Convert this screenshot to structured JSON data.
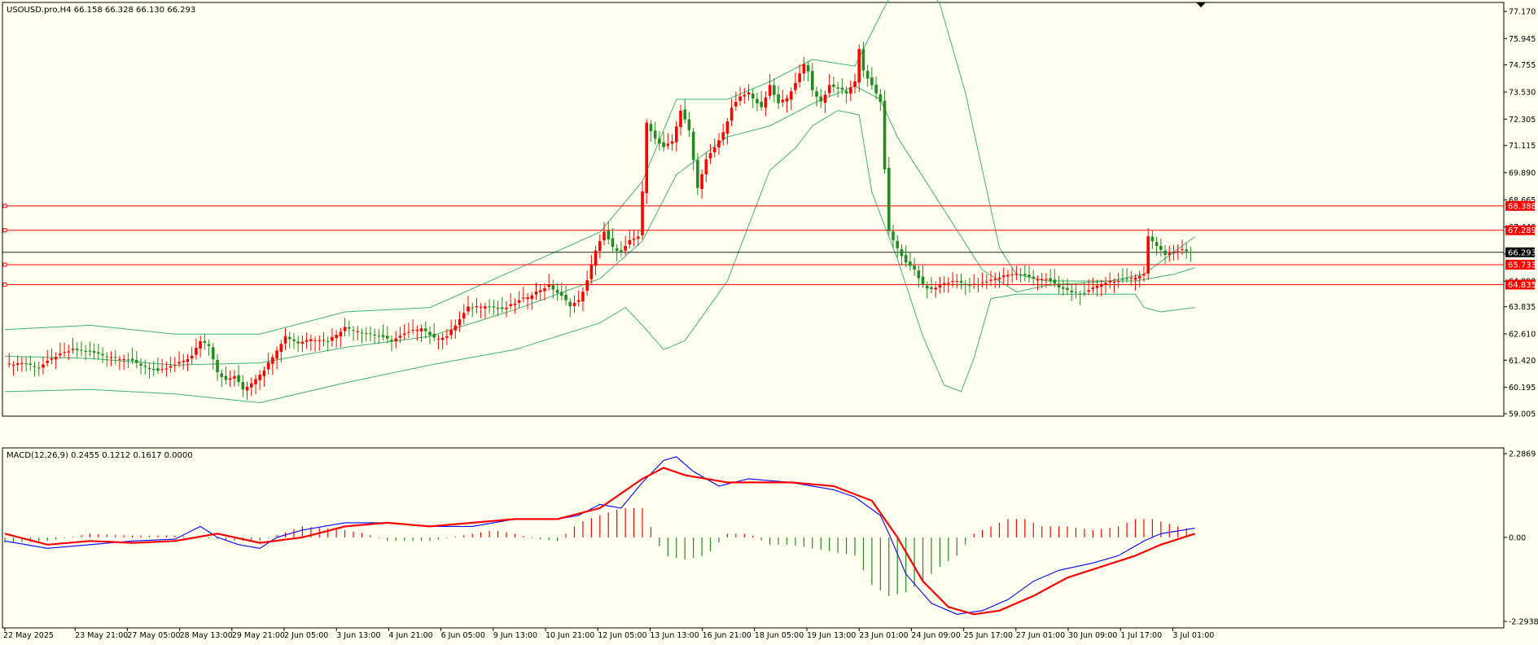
{
  "main_header": {
    "symbol": "USOUSD.pro,H4",
    "ohlc": "66.158 66.328 66.130 66.293"
  },
  "macd_header": {
    "label": "MACD(12,26,9) 0.2455 0.1212 0.1617 0.0000"
  },
  "colors": {
    "background": "#fffff0",
    "bull_candle": "#ff0000",
    "bear_candle": "#228b22",
    "bollinger": "#3cb371",
    "hline": "#ff0000",
    "macd_main": "#0000ff",
    "macd_signal": "#ff0000",
    "hist_pos": "#ff0000",
    "hist_neg": "#228b22"
  },
  "chart_data": [
    {
      "type": "candlestick",
      "price_axis_ticks": [
        "77.170",
        "75.945",
        "74.755",
        "73.530",
        "72.305",
        "71.115",
        "69.890",
        "68.665",
        "67.440",
        "66.215",
        "64.990",
        "63.835",
        "62.610",
        "61.420",
        "60.195",
        "59.005"
      ],
      "ylim": [
        59.005,
        77.17
      ],
      "current_price": "66.293",
      "levels": [
        "68.388",
        "67.289",
        "65.733",
        "64.835"
      ],
      "x_ticks": [
        "22 May 2025",
        "23 May 21:00",
        "27 May 05:00",
        "28 May 13:00",
        "29 May 21:00",
        "2 Jun 05:00",
        "3 Jun 13:00",
        "4 Jun 21:00",
        "6 Jun 05:00",
        "9 Jun 13:00",
        "10 Jun 21:00",
        "12 Jun 05:00",
        "13 Jun 13:00",
        "16 Jun 21:00",
        "18 Jun 05:00",
        "19 Jun 13:00",
        "23 Jun 01:00",
        "24 Jun 09:00",
        "25 Jun 17:00",
        "27 Jun 01:00",
        "30 Jun 09:00",
        "1 Jul 17:00",
        "3 Jul 01:00"
      ],
      "close_path": [
        [
          0,
          61.2
        ],
        [
          4,
          61.3
        ],
        [
          8,
          61.1
        ],
        [
          12,
          61.6
        ],
        [
          16,
          61.9
        ],
        [
          20,
          61.8
        ],
        [
          24,
          61.6
        ],
        [
          28,
          61.5
        ],
        [
          32,
          61.2
        ],
        [
          36,
          60.9
        ],
        [
          40,
          61.2
        ],
        [
          44,
          61.6
        ],
        [
          46,
          62.3
        ],
        [
          48,
          62.1
        ],
        [
          50,
          60.9
        ],
        [
          52,
          60.5
        ],
        [
          54,
          60.7
        ],
        [
          56,
          60.1
        ],
        [
          58,
          60.4
        ],
        [
          61,
          61.0
        ],
        [
          64,
          61.9
        ],
        [
          66,
          62.5
        ],
        [
          69,
          62.2
        ],
        [
          72,
          62.4
        ],
        [
          76,
          62.3
        ],
        [
          80,
          62.9
        ],
        [
          84,
          62.7
        ],
        [
          88,
          62.5
        ],
        [
          91,
          62.3
        ],
        [
          94,
          62.6
        ],
        [
          98,
          62.9
        ],
        [
          101,
          62.4
        ],
        [
          104,
          62.5
        ],
        [
          106,
          63.0
        ],
        [
          109,
          63.8
        ],
        [
          113,
          63.9
        ],
        [
          117,
          63.7
        ],
        [
          120,
          64.0
        ],
        [
          124,
          64.4
        ],
        [
          128,
          64.8
        ],
        [
          131,
          64.3
        ],
        [
          133,
          63.9
        ],
        [
          135,
          64.1
        ],
        [
          137,
          65.0
        ],
        [
          139,
          66.4
        ],
        [
          141,
          67.2
        ],
        [
          143,
          66.5
        ],
        [
          145,
          66.3
        ],
        [
          147,
          66.8
        ],
        [
          149,
          67.0
        ],
        [
          150,
          69.0
        ],
        [
          151,
          72.2
        ],
        [
          153,
          71.4
        ],
        [
          155,
          71.0
        ],
        [
          157,
          71.3
        ],
        [
          159,
          72.7
        ],
        [
          161,
          71.8
        ],
        [
          163,
          69.2
        ],
        [
          165,
          70.5
        ],
        [
          167,
          71.0
        ],
        [
          169,
          71.7
        ],
        [
          171,
          72.8
        ],
        [
          173,
          73.3
        ],
        [
          175,
          73.5
        ],
        [
          178,
          72.8
        ],
        [
          180,
          73.8
        ],
        [
          182,
          73.0
        ],
        [
          184,
          73.3
        ],
        [
          186,
          73.9
        ],
        [
          188,
          74.8
        ],
        [
          189,
          74.5
        ],
        [
          190,
          73.6
        ],
        [
          192,
          73.1
        ],
        [
          194,
          73.8
        ],
        [
          196,
          73.7
        ],
        [
          198,
          73.5
        ],
        [
          200,
          74.0
        ],
        [
          201,
          75.5
        ],
        [
          202,
          74.5
        ],
        [
          204,
          73.8
        ],
        [
          206,
          73.1
        ],
        [
          207,
          70.0
        ],
        [
          208,
          67.2
        ],
        [
          210,
          66.5
        ],
        [
          212,
          65.8
        ],
        [
          214,
          65.5
        ],
        [
          216,
          64.8
        ],
        [
          218,
          64.6
        ],
        [
          221,
          64.9
        ],
        [
          224,
          65.0
        ],
        [
          227,
          64.8
        ],
        [
          230,
          64.9
        ],
        [
          233,
          65.1
        ],
        [
          236,
          65.3
        ],
        [
          239,
          65.3
        ],
        [
          242,
          65.1
        ],
        [
          245,
          65.1
        ],
        [
          248,
          64.7
        ],
        [
          251,
          64.5
        ],
        [
          254,
          64.4
        ],
        [
          257,
          64.8
        ],
        [
          260,
          65.0
        ],
        [
          263,
          65.0
        ],
        [
          266,
          65.2
        ],
        [
          268,
          65.3
        ],
        [
          269,
          67.0
        ],
        [
          271,
          66.6
        ],
        [
          273,
          66.2
        ],
        [
          275,
          66.3
        ],
        [
          277,
          66.4
        ],
        [
          279,
          66.3
        ]
      ],
      "bb_upper": [
        [
          0,
          62.8
        ],
        [
          20,
          63.0
        ],
        [
          40,
          62.6
        ],
        [
          60,
          62.6
        ],
        [
          80,
          63.6
        ],
        [
          100,
          63.8
        ],
        [
          120,
          65.5
        ],
        [
          140,
          67.2
        ],
        [
          150,
          69.5
        ],
        [
          158,
          73.2
        ],
        [
          170,
          73.2
        ],
        [
          180,
          74.0
        ],
        [
          190,
          75.0
        ],
        [
          200,
          74.7
        ],
        [
          206,
          77.0
        ],
        [
          210,
          78.5
        ],
        [
          215,
          78.8
        ],
        [
          220,
          77.5
        ],
        [
          226,
          73.5
        ],
        [
          230,
          70.0
        ],
        [
          234,
          66.5
        ],
        [
          238,
          65.3
        ],
        [
          245,
          65.0
        ],
        [
          260,
          65.0
        ],
        [
          268,
          65.3
        ],
        [
          275,
          66.3
        ],
        [
          280,
          67.0
        ]
      ],
      "bb_mid": [
        [
          0,
          61.6
        ],
        [
          20,
          61.5
        ],
        [
          40,
          61.2
        ],
        [
          60,
          61.3
        ],
        [
          80,
          62.0
        ],
        [
          100,
          62.5
        ],
        [
          120,
          63.7
        ],
        [
          140,
          65.1
        ],
        [
          150,
          66.8
        ],
        [
          158,
          69.8
        ],
        [
          170,
          71.5
        ],
        [
          180,
          72.0
        ],
        [
          190,
          73.0
        ],
        [
          200,
          73.8
        ],
        [
          206,
          73.2
        ],
        [
          210,
          71.5
        ],
        [
          220,
          68.5
        ],
        [
          230,
          65.5
        ],
        [
          238,
          64.5
        ],
        [
          245,
          64.8
        ],
        [
          260,
          65.0
        ],
        [
          266,
          65.0
        ],
        [
          275,
          65.3
        ],
        [
          280,
          65.6
        ]
      ],
      "bb_lower": [
        [
          0,
          60.0
        ],
        [
          20,
          60.1
        ],
        [
          40,
          59.9
        ],
        [
          60,
          59.5
        ],
        [
          80,
          60.4
        ],
        [
          100,
          61.2
        ],
        [
          120,
          61.9
        ],
        [
          140,
          63.1
        ],
        [
          146,
          63.8
        ],
        [
          150,
          63.0
        ],
        [
          155,
          61.9
        ],
        [
          160,
          62.3
        ],
        [
          170,
          65.0
        ],
        [
          180,
          70.0
        ],
        [
          186,
          71.0
        ],
        [
          190,
          72.0
        ],
        [
          196,
          72.7
        ],
        [
          201,
          72.5
        ],
        [
          204,
          69.0
        ],
        [
          210,
          66.0
        ],
        [
          216,
          62.5
        ],
        [
          221,
          60.3
        ],
        [
          225,
          60.0
        ],
        [
          228,
          61.5
        ],
        [
          232,
          64.2
        ],
        [
          238,
          64.4
        ],
        [
          245,
          64.4
        ],
        [
          266,
          64.4
        ],
        [
          268,
          63.8
        ],
        [
          272,
          63.6
        ],
        [
          280,
          63.8
        ]
      ]
    },
    {
      "type": "macd",
      "params": "MACD(12,26,9)",
      "values": [
        0.2455,
        0.1212,
        0.1617,
        0.0
      ],
      "ylim": [
        -2.2938,
        2.2869
      ],
      "y_ticks": [
        "2.2869",
        "0.00",
        "-2.2938"
      ],
      "macd_line": [
        [
          0,
          -0.1
        ],
        [
          10,
          -0.3
        ],
        [
          20,
          -0.2
        ],
        [
          30,
          -0.1
        ],
        [
          40,
          -0.05
        ],
        [
          46,
          0.3
        ],
        [
          50,
          0.0
        ],
        [
          55,
          -0.2
        ],
        [
          60,
          -0.3
        ],
        [
          64,
          0.0
        ],
        [
          70,
          0.2
        ],
        [
          80,
          0.4
        ],
        [
          90,
          0.4
        ],
        [
          100,
          0.3
        ],
        [
          110,
          0.3
        ],
        [
          120,
          0.5
        ],
        [
          130,
          0.5
        ],
        [
          135,
          0.6
        ],
        [
          140,
          0.9
        ],
        [
          145,
          0.8
        ],
        [
          150,
          1.5
        ],
        [
          155,
          2.1
        ],
        [
          158,
          2.2
        ],
        [
          162,
          1.8
        ],
        [
          168,
          1.4
        ],
        [
          175,
          1.6
        ],
        [
          185,
          1.5
        ],
        [
          195,
          1.3
        ],
        [
          200,
          1.1
        ],
        [
          206,
          0.6
        ],
        [
          208,
          0.1
        ],
        [
          212,
          -1.0
        ],
        [
          218,
          -1.8
        ],
        [
          224,
          -2.1
        ],
        [
          230,
          -2.0
        ],
        [
          236,
          -1.7
        ],
        [
          242,
          -1.2
        ],
        [
          248,
          -0.9
        ],
        [
          256,
          -0.7
        ],
        [
          262,
          -0.5
        ],
        [
          268,
          -0.1
        ],
        [
          272,
          0.1
        ],
        [
          280,
          0.25
        ]
      ],
      "signal_line": [
        [
          0,
          0.1
        ],
        [
          10,
          -0.2
        ],
        [
          20,
          -0.1
        ],
        [
          30,
          -0.15
        ],
        [
          40,
          -0.1
        ],
        [
          50,
          0.1
        ],
        [
          60,
          -0.15
        ],
        [
          70,
          0.0
        ],
        [
          80,
          0.3
        ],
        [
          90,
          0.4
        ],
        [
          100,
          0.3
        ],
        [
          110,
          0.4
        ],
        [
          120,
          0.5
        ],
        [
          130,
          0.5
        ],
        [
          140,
          0.8
        ],
        [
          150,
          1.6
        ],
        [
          155,
          1.9
        ],
        [
          160,
          1.7
        ],
        [
          170,
          1.5
        ],
        [
          185,
          1.5
        ],
        [
          195,
          1.4
        ],
        [
          204,
          1.0
        ],
        [
          210,
          0.0
        ],
        [
          216,
          -1.2
        ],
        [
          222,
          -1.9
        ],
        [
          228,
          -2.1
        ],
        [
          234,
          -2.0
        ],
        [
          242,
          -1.6
        ],
        [
          250,
          -1.1
        ],
        [
          258,
          -0.8
        ],
        [
          266,
          -0.5
        ],
        [
          272,
          -0.2
        ],
        [
          280,
          0.1
        ]
      ],
      "histogram": [
        [
          0,
          -0.15
        ],
        [
          10,
          -0.1
        ],
        [
          20,
          0.1
        ],
        [
          30,
          0.05
        ],
        [
          40,
          0.05
        ],
        [
          50,
          -0.05
        ],
        [
          55,
          -0.1
        ],
        [
          60,
          -0.1
        ],
        [
          65,
          0.1
        ],
        [
          70,
          0.3
        ],
        [
          80,
          0.2
        ],
        [
          85,
          0.1
        ],
        [
          90,
          -0.1
        ],
        [
          100,
          -0.1
        ],
        [
          110,
          0.1
        ],
        [
          115,
          0.2
        ],
        [
          120,
          0.1
        ],
        [
          125,
          -0.05
        ],
        [
          130,
          -0.1
        ],
        [
          135,
          0.4
        ],
        [
          140,
          0.6
        ],
        [
          145,
          0.8
        ],
        [
          150,
          0.8
        ],
        [
          155,
          -0.5
        ],
        [
          160,
          -0.6
        ],
        [
          165,
          -0.5
        ],
        [
          170,
          0.1
        ],
        [
          175,
          0.1
        ],
        [
          180,
          -0.2
        ],
        [
          185,
          -0.2
        ],
        [
          190,
          -0.3
        ],
        [
          195,
          -0.4
        ],
        [
          200,
          -0.5
        ],
        [
          204,
          -1.3
        ],
        [
          208,
          -1.6
        ],
        [
          212,
          -1.5
        ],
        [
          216,
          -1.2
        ],
        [
          220,
          -0.8
        ],
        [
          224,
          -0.5
        ],
        [
          228,
          0.1
        ],
        [
          232,
          0.3
        ],
        [
          236,
          0.5
        ],
        [
          240,
          0.5
        ],
        [
          244,
          0.3
        ],
        [
          250,
          0.3
        ],
        [
          256,
          0.2
        ],
        [
          262,
          0.3
        ],
        [
          266,
          0.5
        ],
        [
          270,
          0.5
        ],
        [
          276,
          0.3
        ],
        [
          280,
          0.2
        ]
      ]
    }
  ]
}
